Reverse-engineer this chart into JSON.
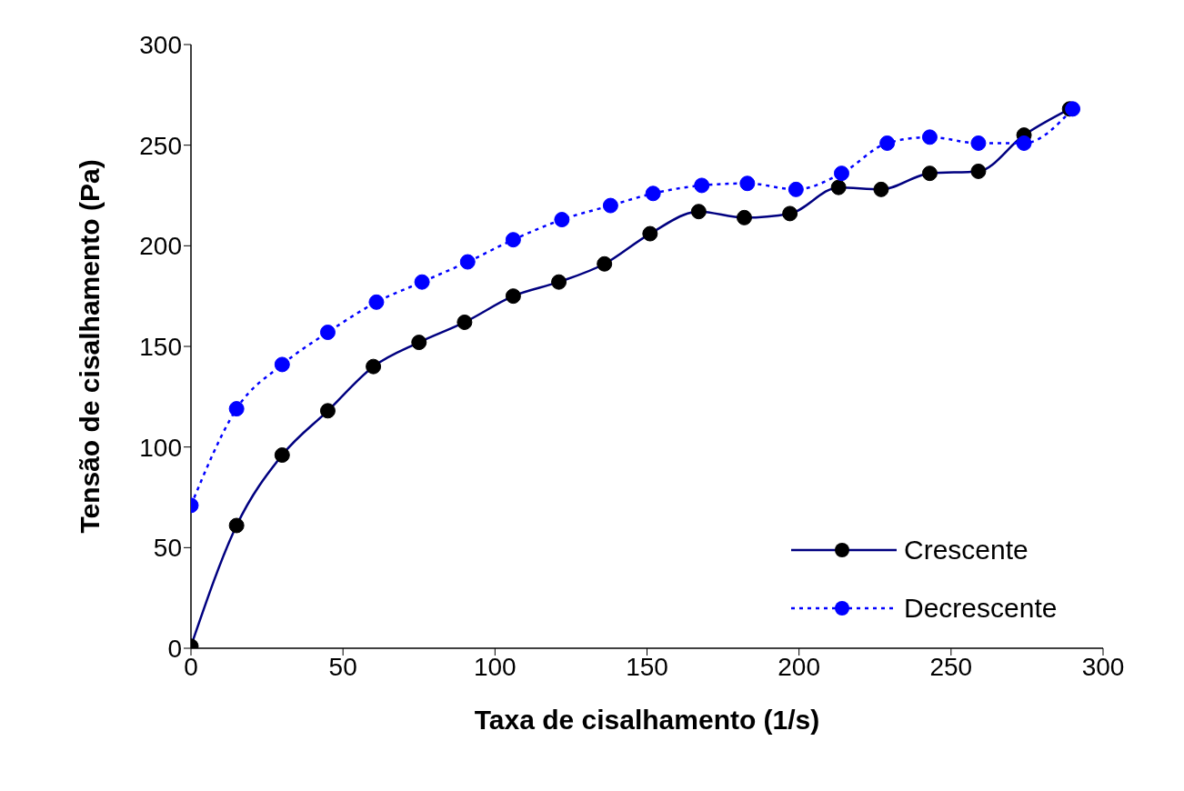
{
  "chart_data": {
    "type": "line",
    "xlabel": "Taxa de cisalhamento (1/s)",
    "ylabel": "Tensão de cisalhamento (Pa)",
    "xlim": [
      0,
      300
    ],
    "xticks": [
      0,
      50,
      100,
      150,
      200,
      250,
      300
    ],
    "ylim": [
      0,
      300
    ],
    "yticks": [
      0,
      50,
      100,
      150,
      200,
      250,
      300
    ],
    "legend": "bottom right",
    "marker": "circle",
    "series": [
      {
        "name": "Crescente",
        "color": "#000080",
        "line_style": "solid",
        "colors": [
          "#000000",
          "#000000",
          "#000000",
          "#000000",
          "#000000",
          "#000000",
          "#000000",
          "#000000",
          "#000000",
          "#000000",
          "#000000",
          "#000000",
          "#000000",
          "#000000",
          "#000000",
          "#000000",
          "#000000",
          "#000000",
          "#000000",
          "#000000"
        ],
        "x": [
          0,
          15,
          30,
          45,
          60,
          75,
          90,
          106,
          121,
          136,
          151,
          167,
          182,
          197,
          213,
          227,
          243,
          259,
          274,
          289
        ],
        "values": [
          1,
          61,
          96,
          118,
          140,
          152,
          162,
          175,
          182,
          191,
          206,
          217,
          214,
          216,
          229,
          228,
          236,
          237,
          255,
          268
        ]
      },
      {
        "name": "Decrescente",
        "color": "#0000ff",
        "line_style": "dotted",
        "colors": [
          "#0000ff",
          "#0000ff",
          "#0000ff",
          "#0000ff",
          "#0000ff",
          "#0000ff",
          "#0000ff",
          "#0000ff",
          "#0000ff",
          "#0000ff",
          "#0000ff",
          "#0000ff",
          "#0000ff",
          "#0000ff",
          "#0000ff",
          "#0000ff",
          "#0000ff",
          "#0000ff",
          "#0000ff",
          "#0000ff"
        ],
        "x": [
          0,
          15,
          30,
          45,
          61,
          76,
          91,
          106,
          122,
          138,
          152,
          168,
          183,
          199,
          214,
          229,
          243,
          259,
          274,
          290
        ],
        "values": [
          71,
          119,
          141,
          157,
          172,
          182,
          192,
          203,
          213,
          220,
          226,
          230,
          231,
          228,
          236,
          251,
          254,
          251,
          251,
          268
        ]
      }
    ]
  }
}
